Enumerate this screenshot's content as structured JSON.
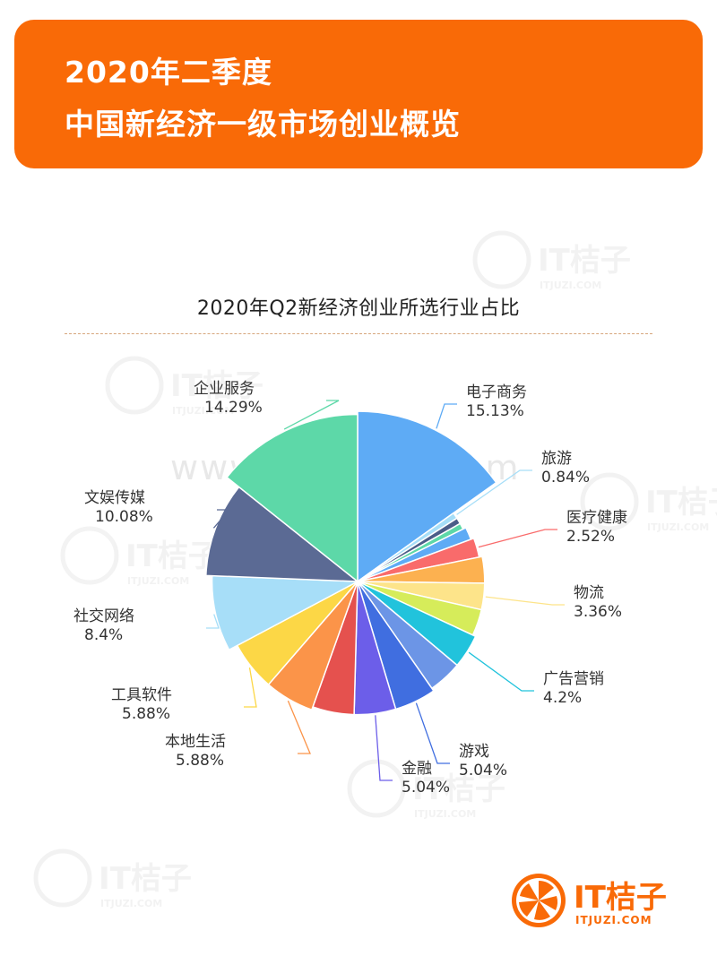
{
  "header": {
    "line1": "2020年二季度",
    "line2": "中国新经济一级市场创业概览"
  },
  "chart_data": {
    "type": "pie",
    "title": "2020年Q2新经济创业所选行业占比",
    "slices": [
      {
        "label": "电子商务",
        "value": 15.13,
        "display": "15.13%",
        "color": "#5eabf5",
        "labeled": true
      },
      {
        "label": "旅游",
        "value": 0.84,
        "display": "0.84%",
        "color": "#a6def8",
        "labeled": true
      },
      {
        "label": "",
        "value": 0.84,
        "display": "",
        "color": "#4b5d88",
        "labeled": false
      },
      {
        "label": "",
        "value": 0.84,
        "display": "",
        "color": "#5dd8a8",
        "labeled": false
      },
      {
        "label": "",
        "value": 1.68,
        "display": "",
        "color": "#5eabf5",
        "labeled": false
      },
      {
        "label": "医疗健康",
        "value": 2.52,
        "display": "2.52%",
        "color": "#f96b6b",
        "labeled": true
      },
      {
        "label": "",
        "value": 3.36,
        "display": "",
        "color": "#fcb150",
        "labeled": false
      },
      {
        "label": "物流",
        "value": 3.36,
        "display": "3.36%",
        "color": "#fde48a",
        "labeled": true
      },
      {
        "label": "",
        "value": 3.36,
        "display": "",
        "color": "#d6ec5a",
        "labeled": false
      },
      {
        "label": "广告营销",
        "value": 4.2,
        "display": "4.2%",
        "color": "#21c3dc",
        "labeled": true
      },
      {
        "label": "",
        "value": 4.2,
        "display": "",
        "color": "#6c95e6",
        "labeled": false
      },
      {
        "label": "游戏",
        "value": 5.04,
        "display": "5.04%",
        "color": "#406ee0",
        "labeled": true
      },
      {
        "label": "金融",
        "value": 5.04,
        "display": "5.04%",
        "color": "#6c5ee9",
        "labeled": true
      },
      {
        "label": "",
        "value": 5.04,
        "display": "",
        "color": "#e5514e",
        "labeled": false
      },
      {
        "label": "本地生活",
        "value": 5.88,
        "display": "5.88%",
        "color": "#fb9449",
        "labeled": true
      },
      {
        "label": "工具软件",
        "value": 5.88,
        "display": "5.88%",
        "color": "#fcd746",
        "labeled": true
      },
      {
        "label": "社交网络",
        "value": 8.4,
        "display": "8.4%",
        "color": "#a7def8",
        "labeled": true
      },
      {
        "label": "文娱传媒",
        "value": 10.08,
        "display": "10.08%",
        "color": "#5b6a94",
        "labeled": true
      },
      {
        "label": "企业服务",
        "value": 14.29,
        "display": "14.29%",
        "color": "#5dd8a8",
        "labeled": true
      }
    ]
  },
  "watermark": {
    "url_text": "www.baogao8.com",
    "brand_text": "IT桔子",
    "brand_sub": "ITJUZI.COM"
  },
  "logo": {
    "name": "IT桔子",
    "sub": "ITJUZI.COM",
    "color": "#f96a07"
  }
}
